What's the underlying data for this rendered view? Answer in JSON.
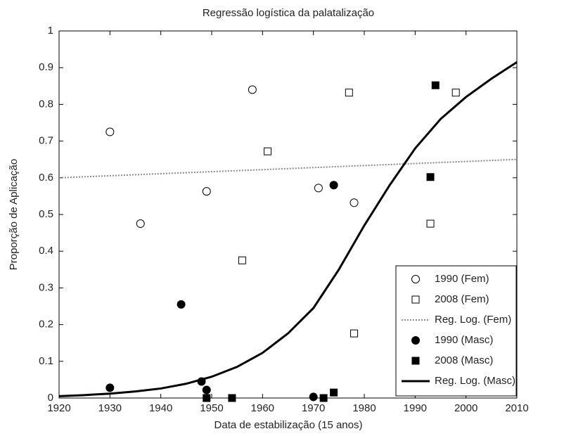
{
  "chart_data": {
    "type": "scatter",
    "title": "Regressão logística da palatalização",
    "x_label": "Data de estabilização (15 anos)",
    "y_label": "Proporção de Aplicação",
    "xlim": [
      1920,
      2010
    ],
    "xticks": [
      1920,
      1930,
      1940,
      1950,
      1960,
      1970,
      1980,
      1990,
      2000,
      2010
    ],
    "ylim": [
      0,
      1
    ],
    "yticks": [
      0,
      0.1,
      0.2,
      0.3,
      0.4,
      0.5,
      0.6,
      0.7,
      0.8,
      0.9,
      1
    ],
    "grid": false,
    "legend": "lower right",
    "series": [
      {
        "name": "1990 (Fem)",
        "color": "#000000",
        "marker": "circle",
        "filled": false,
        "x": [
          1930,
          1936,
          1949,
          1958,
          1971,
          1978
        ],
        "values": [
          0.725,
          0.475,
          0.563,
          0.84,
          0.572,
          0.532
        ]
      },
      {
        "name": "2008 (Fem)",
        "color": "#000000",
        "marker": "square",
        "filled": false,
        "x": [
          1956,
          1961,
          1977,
          1978,
          1993,
          1998
        ],
        "values": [
          0.375,
          0.672,
          0.832,
          0.176,
          0.475,
          0.832
        ]
      },
      {
        "name": "Reg. Log. (Fem)",
        "color": "#888888",
        "marker": "line",
        "line_style": "dotted",
        "x": [
          1920,
          2010
        ],
        "values": [
          0.6,
          0.65
        ]
      },
      {
        "name": "1990 (Masc)",
        "color": "#000000",
        "marker": "circle",
        "filled": true,
        "x": [
          1930,
          1944,
          1948,
          1949,
          1970,
          1974
        ],
        "values": [
          0.028,
          0.255,
          0.045,
          0.022,
          0.003,
          0.58
        ]
      },
      {
        "name": "2008 (Masc)",
        "color": "#000000",
        "marker": "square",
        "filled": true,
        "x": [
          1949,
          1954,
          1972,
          1974,
          1993,
          1994
        ],
        "values": [
          0,
          0,
          0,
          0.015,
          0.602,
          0.852
        ]
      },
      {
        "name": "Reg. Log. (Masc)",
        "color": "#000000",
        "marker": "line",
        "line_style": "solid",
        "x": [
          1920,
          1925,
          1930,
          1935,
          1940,
          1945,
          1950,
          1955,
          1960,
          1965,
          1970,
          1975,
          1980,
          1985,
          1990,
          1995,
          2000,
          2005,
          2010
        ],
        "values": [
          0.005,
          0.008,
          0.012,
          0.018,
          0.026,
          0.039,
          0.058,
          0.085,
          0.123,
          0.176,
          0.245,
          0.35,
          0.47,
          0.58,
          0.68,
          0.76,
          0.82,
          0.87,
          0.915
        ]
      }
    ]
  }
}
